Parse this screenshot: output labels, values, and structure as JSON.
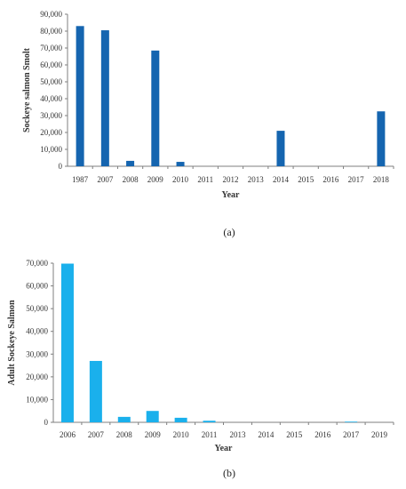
{
  "chart_data": [
    {
      "type": "bar",
      "panel_label": "(a)",
      "categories": [
        "1987",
        "2007",
        "2008",
        "2009",
        "2010",
        "2011",
        "2012",
        "2013",
        "2014",
        "2015",
        "2016",
        "2017",
        "2018"
      ],
      "values": [
        83000,
        80500,
        3200,
        68500,
        2600,
        0,
        0,
        0,
        21000,
        0,
        0,
        0,
        32500
      ],
      "xlabel": "Year",
      "ylabel": "Sockeye salmon Smolt",
      "ylim": [
        0,
        90000
      ],
      "yticks": [
        0,
        10000,
        20000,
        30000,
        40000,
        50000,
        60000,
        70000,
        80000,
        90000
      ],
      "ytick_labels": [
        "0",
        "10,000",
        "20,000",
        "30,000",
        "40,000",
        "50,000",
        "60,000",
        "70,000",
        "80,000",
        "90,000"
      ],
      "bar_color": "#1565b0",
      "grid": false
    },
    {
      "type": "bar",
      "panel_label": "(b)",
      "categories": [
        "2006",
        "2007",
        "2008",
        "2009",
        "2010",
        "2011",
        "2013",
        "2014",
        "2015",
        "2016",
        "2017",
        "2019"
      ],
      "values": [
        69800,
        27000,
        2400,
        5000,
        2000,
        700,
        0,
        0,
        0,
        0,
        300,
        0
      ],
      "xlabel": "Year",
      "ylabel": "Adult Sockeye Salmon",
      "ylim": [
        0,
        70000
      ],
      "yticks": [
        0,
        10000,
        20000,
        30000,
        40000,
        50000,
        60000,
        70000
      ],
      "ytick_labels": [
        "0",
        "10,000",
        "20,000",
        "30,000",
        "40,000",
        "50,000",
        "60,000",
        "70,000"
      ],
      "bar_color": "#1ab0ec",
      "grid": false
    }
  ]
}
